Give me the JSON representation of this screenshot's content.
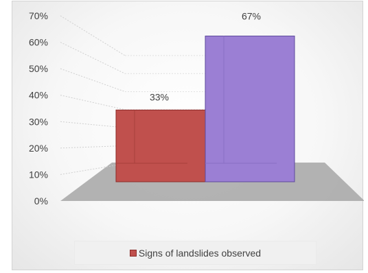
{
  "chart_data": {
    "type": "bar",
    "title": "",
    "xlabel": "",
    "ylabel": "",
    "categories": [
      "",
      ""
    ],
    "values": [
      33,
      67
    ],
    "data_labels": [
      "33%",
      "67%"
    ],
    "ylim": [
      0,
      70
    ],
    "y_ticks": [
      {
        "value": 0,
        "label": "0%"
      },
      {
        "value": 10,
        "label": "10%"
      },
      {
        "value": 20,
        "label": "20%"
      },
      {
        "value": 30,
        "label": "30%"
      },
      {
        "value": 40,
        "label": "40%"
      },
      {
        "value": 50,
        "label": "50%"
      },
      {
        "value": 60,
        "label": "60%"
      },
      {
        "value": 70,
        "label": "70%"
      }
    ],
    "grid": true,
    "style": "3d-column",
    "legend": {
      "position": "bottom",
      "entries": [
        {
          "label": "Signs of landslides observed",
          "color": "#c0504d"
        }
      ]
    },
    "colors": {
      "bar_1": "#c0504d",
      "bar_2": "#9b7fd4",
      "floor": "#a6a6a6"
    }
  }
}
